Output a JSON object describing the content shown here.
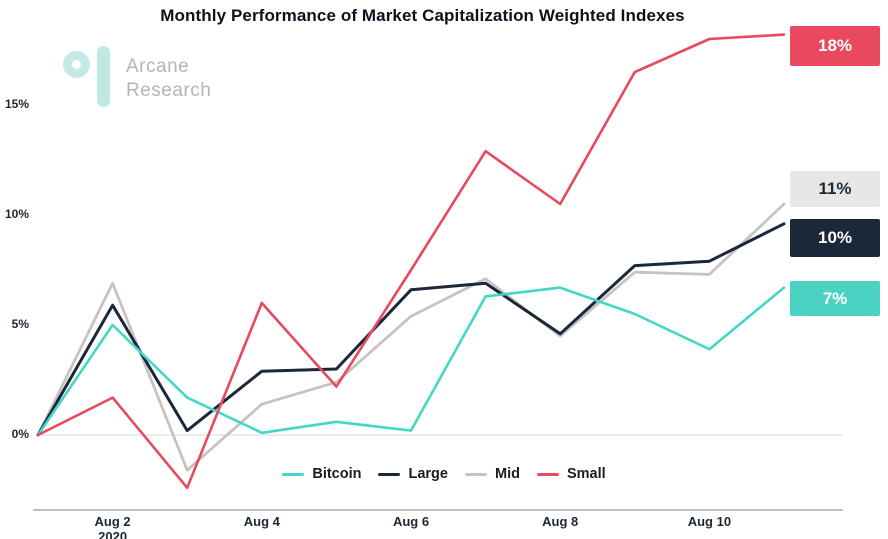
{
  "title": "Monthly Performance of Market Capitalization Weighted Indexes",
  "logo": {
    "name_line1": "Arcane",
    "name_line2": "Research"
  },
  "colors": {
    "logo_teal": "#bfe9e2",
    "logo_text": "#b2b5b8",
    "zero_line": "#d8d8d8",
    "axis_line": "#a9a9a9",
    "tick_text": "#1d2733"
  },
  "chart_data": {
    "type": "line",
    "title": "Monthly Performance of Market Capitalization Weighted Indexes",
    "x_days": [
      "Aug 1",
      "Aug 2",
      "Aug 3",
      "Aug 4",
      "Aug 5",
      "Aug 6",
      "Aug 7",
      "Aug 8",
      "Aug 9",
      "Aug 10",
      "Aug 11"
    ],
    "x_tick_labels": [
      {
        "label": "Aug 2",
        "sublabel": "2020",
        "day": 1
      },
      {
        "label": "Aug 4",
        "day": 3
      },
      {
        "label": "Aug 6",
        "day": 5
      },
      {
        "label": "Aug 8",
        "day": 7
      },
      {
        "label": "Aug 10",
        "day": 9
      }
    ],
    "y_ticks": [
      {
        "label": "0%",
        "value": 0
      },
      {
        "label": "5%",
        "value": 5
      },
      {
        "label": "10%",
        "value": 10
      },
      {
        "label": "15%",
        "value": 15
      }
    ],
    "ylim": [
      -3,
      18.5
    ],
    "grid": "zero-line-only",
    "legend_position": "bottom-center",
    "series": [
      {
        "name": "Bitcoin",
        "color": "#44d7c6",
        "values": [
          0,
          5.0,
          1.7,
          0.1,
          0.6,
          0.2,
          6.3,
          6.7,
          5.5,
          3.9,
          6.7
        ],
        "end_label": "7%",
        "end_label_bg": "#4cd2c3",
        "end_label_text_color": "#ffffff"
      },
      {
        "name": "Large",
        "color": "#1b2839",
        "values": [
          0,
          5.9,
          0.2,
          2.9,
          3.0,
          6.6,
          6.9,
          4.6,
          7.7,
          7.9,
          9.6
        ],
        "end_label": "10%",
        "end_label_bg": "#1b2839",
        "end_label_text_color": "#ffffff"
      },
      {
        "name": "Mid",
        "color": "#c8c3c0",
        "values": [
          0,
          6.9,
          -1.6,
          1.4,
          2.4,
          5.4,
          7.1,
          4.5,
          7.4,
          7.3,
          10.5
        ],
        "end_label": "11%",
        "end_label_bg": "#e9e7e5",
        "end_label_text_color": "#1b2839"
      },
      {
        "name": "Small",
        "color": "#e8495f",
        "values": [
          0,
          1.7,
          -2.4,
          6.0,
          2.2,
          7.5,
          12.9,
          10.5,
          16.5,
          18.0,
          18.2
        ],
        "end_label": "18%",
        "end_label_bg": "#e8495f",
        "end_label_text_color": "#ffffff"
      }
    ]
  }
}
